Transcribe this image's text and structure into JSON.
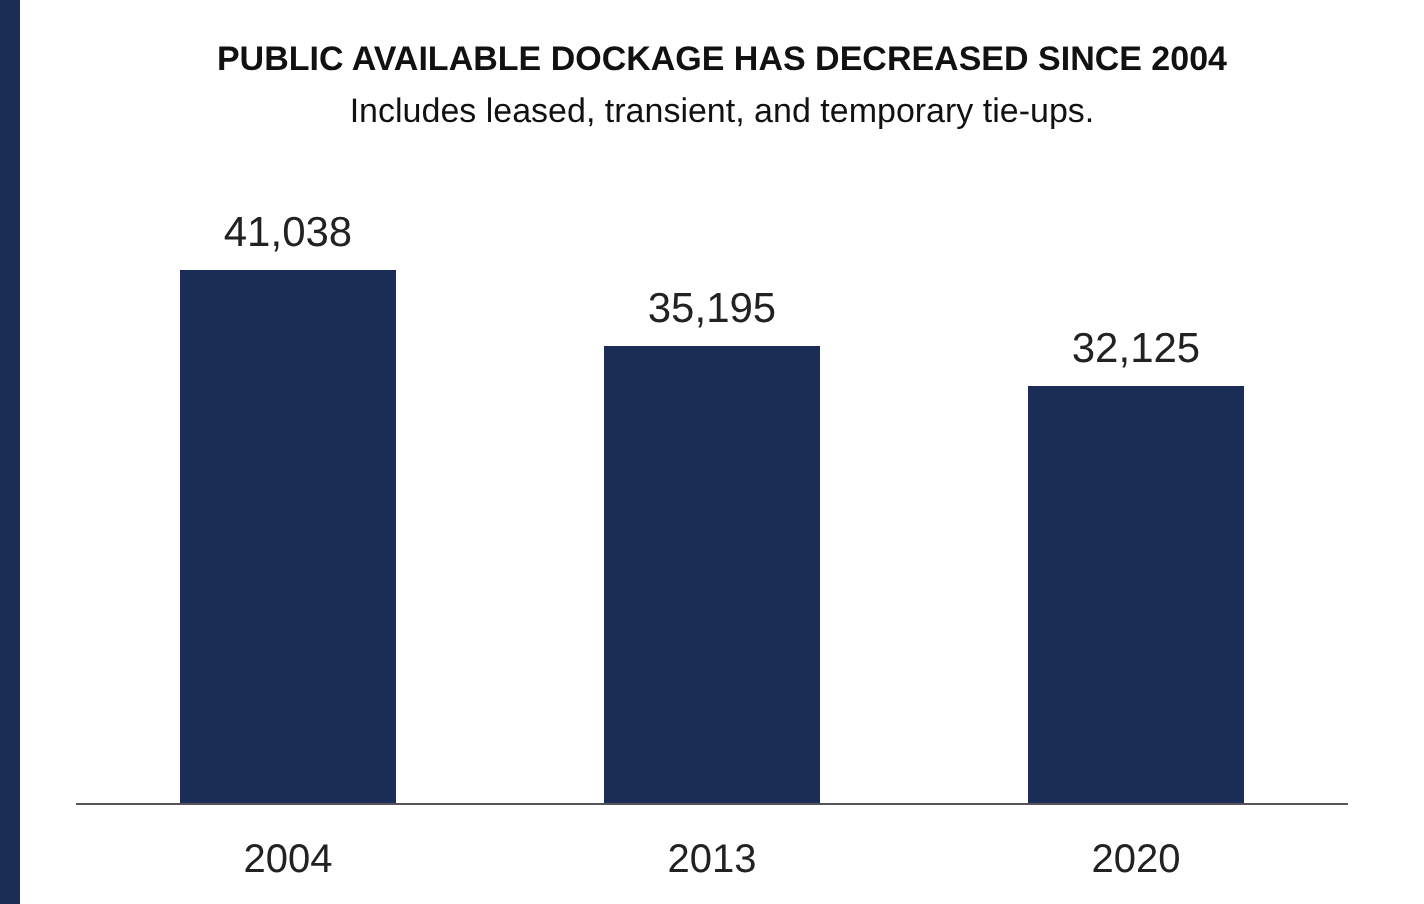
{
  "chart_data": {
    "type": "bar",
    "title": "PUBLIC AVAILABLE DOCKAGE HAS DECREASED SINCE 2004",
    "subtitle": "Includes leased, transient, and temporary tie-ups.",
    "categories": [
      "2004",
      "2013",
      "2020"
    ],
    "values": [
      41038,
      35195,
      32125
    ],
    "value_labels": [
      "41,038",
      "35,195",
      "32,125"
    ],
    "color": "#1b2d57"
  }
}
